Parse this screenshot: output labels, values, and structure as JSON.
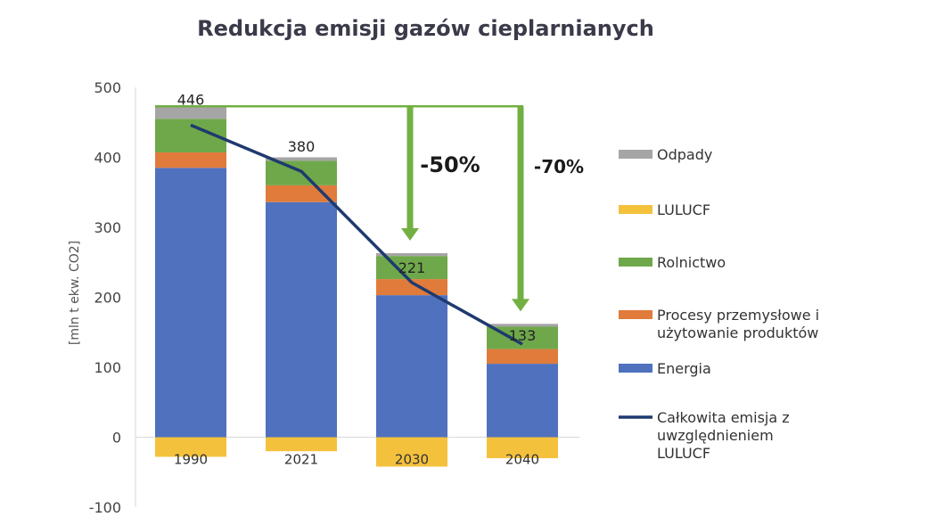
{
  "chart_data": {
    "type": "bar",
    "stacked": true,
    "title": "Redukcja emisji gazów cieplarnianych",
    "ylabel": "[mln t ekw. CO2]",
    "xlabel": "",
    "ylim": [
      -100,
      500
    ],
    "yticks": [
      -100,
      0,
      100,
      200,
      300,
      400,
      500
    ],
    "grid": false,
    "legend_position": "right",
    "categories": [
      "1990",
      "2021",
      "2030",
      "2040"
    ],
    "series": [
      {
        "name": "Energia",
        "color": "#4f71be",
        "values": [
          385,
          336,
          203,
          105
        ]
      },
      {
        "name": "Procesy przemysłowe i użytowanie produktów",
        "color": "#e07b3c",
        "values": [
          22,
          24,
          23,
          21
        ]
      },
      {
        "name": "Rolnictwo",
        "color": "#6fa84a",
        "values": [
          48,
          35,
          33,
          32
        ]
      },
      {
        "name": "LULUCF",
        "color": "#f4c13d",
        "values": [
          -28,
          -20,
          -42,
          -30
        ]
      },
      {
        "name": "Odpady",
        "color": "#a5a5a5",
        "values": [
          19,
          5,
          4,
          4
        ]
      }
    ],
    "line_series": {
      "name": "Całkowita emisja z uwzględnieniem LULUCF",
      "color": "#1f3a6e",
      "values": [
        446,
        380,
        221,
        133
      ]
    },
    "total_labels": [
      "446",
      "380",
      "221",
      "133"
    ],
    "legend_order": [
      "Odpady",
      "LULUCF",
      "Rolnictwo",
      "Procesy przemysłowe i użytowanie produktów",
      "Energia",
      "Całkowita emisja z uwzględnieniem LULUCF"
    ],
    "legend_lines": {
      "Procesy przemysłowe i użytowanie produktów": [
        "Procesy przemysłowe i",
        "użytowanie produktów"
      ],
      "Całkowita emisja z uwzględnieniem LULUCF": [
        "Całkowita emisja z",
        "uwzględnieniem",
        "LULUCF"
      ]
    },
    "annotations": [
      {
        "text": "-50%",
        "target_category": "2030",
        "reference_value": 473,
        "arrow_color": "#73b043"
      },
      {
        "text": "-70%",
        "target_category": "2040",
        "reference_value": 473,
        "arrow_color": "#73b043"
      }
    ]
  }
}
